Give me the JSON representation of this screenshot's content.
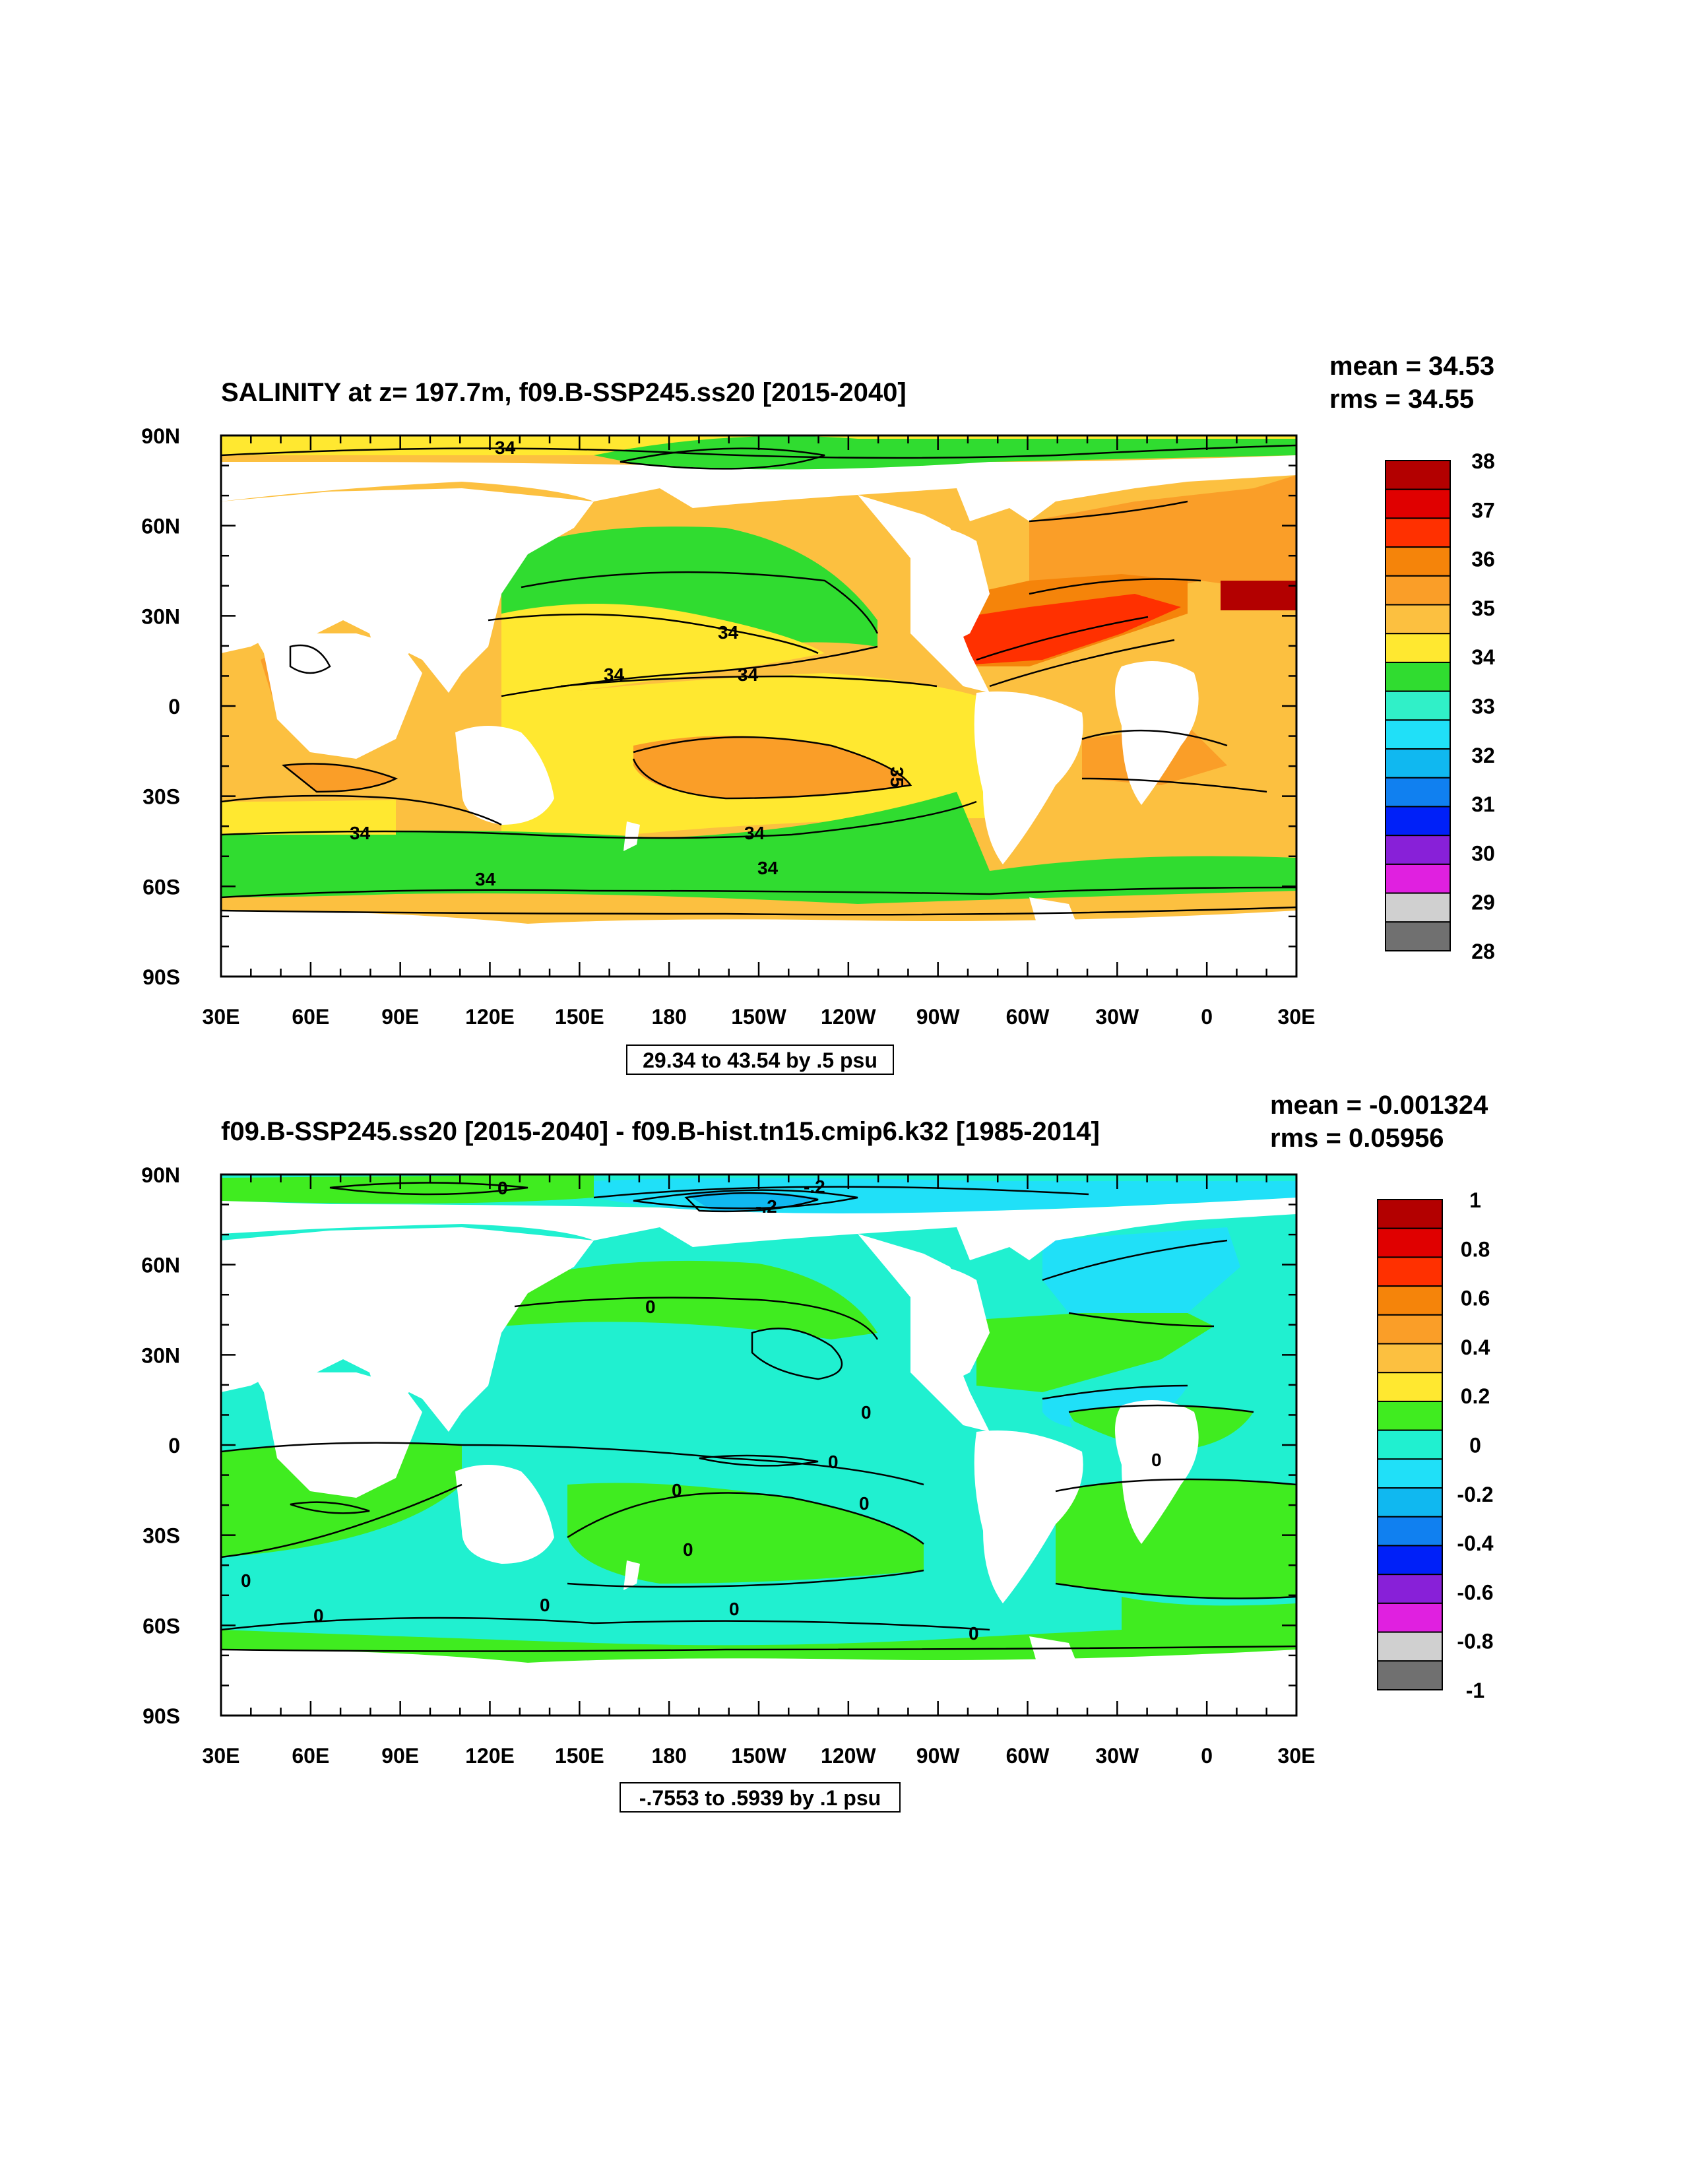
{
  "panels": [
    {
      "title": "SALINITY at z= 197.7m, f09.B-SSP245.ss20 [2015-2040]",
      "stats": {
        "mean": "mean = 34.53",
        "rms": "rms = 34.55"
      },
      "contour_info": "29.34 to 43.54 by .5 psu",
      "colorbar": {
        "labels": [
          "38",
          "37",
          "36",
          "35",
          "34",
          "33",
          "32",
          "31",
          "30",
          "29",
          "28"
        ],
        "colors": [
          "#b30000",
          "#e00000",
          "#ff3000",
          "#f5840a",
          "#fa9e28",
          "#fcc040",
          "#ffe830",
          "#30dc30",
          "#30f0c8",
          "#20e0f8",
          "#10b8f0",
          "#1080f0",
          "#0020f8",
          "#8820d8",
          "#e020e0",
          "#d0d0d0",
          "#707070"
        ]
      },
      "contour_labels": [
        "34",
        "34",
        "34",
        "34",
        "35",
        "34",
        "34",
        "34",
        "34"
      ]
    },
    {
      "title": "f09.B-SSP245.ss20 [2015-2040] - f09.B-hist.tn15.cmip6.k32 [1985-2014]",
      "stats": {
        "mean": "mean = -0.001324",
        "rms": "rms = 0.05956"
      },
      "contour_info": "-.7553 to .5939 by .1 psu",
      "colorbar": {
        "labels": [
          "1",
          "0.8",
          "0.6",
          "0.4",
          "0.2",
          "0",
          "-0.2",
          "-0.4",
          "-0.6",
          "-0.8",
          "-1"
        ],
        "colors": [
          "#b30000",
          "#e00000",
          "#ff3000",
          "#f5840a",
          "#fa9e28",
          "#fcc040",
          "#ffe830",
          "#40ec20",
          "#20f0d0",
          "#20e0f8",
          "#10b8f0",
          "#1080f0",
          "#0020f8",
          "#8820d8",
          "#e020e0",
          "#d0d0d0",
          "#707070"
        ]
      },
      "contour_labels": [
        "0",
        "-.2",
        "-.2",
        "0",
        "0",
        "0",
        "0",
        "0",
        "0",
        "0",
        "0",
        "0",
        "0",
        "0",
        "0"
      ]
    }
  ],
  "axes": {
    "lat_labels": [
      "90N",
      "60N",
      "30N",
      "0",
      "30S",
      "60S",
      "90S"
    ],
    "lon_labels": [
      "30E",
      "60E",
      "90E",
      "120E",
      "150E",
      "180",
      "150W",
      "120W",
      "90W",
      "60W",
      "30W",
      "0",
      "30E"
    ]
  },
  "colors": {
    "land": "#ffffff",
    "frame": "#000000"
  }
}
